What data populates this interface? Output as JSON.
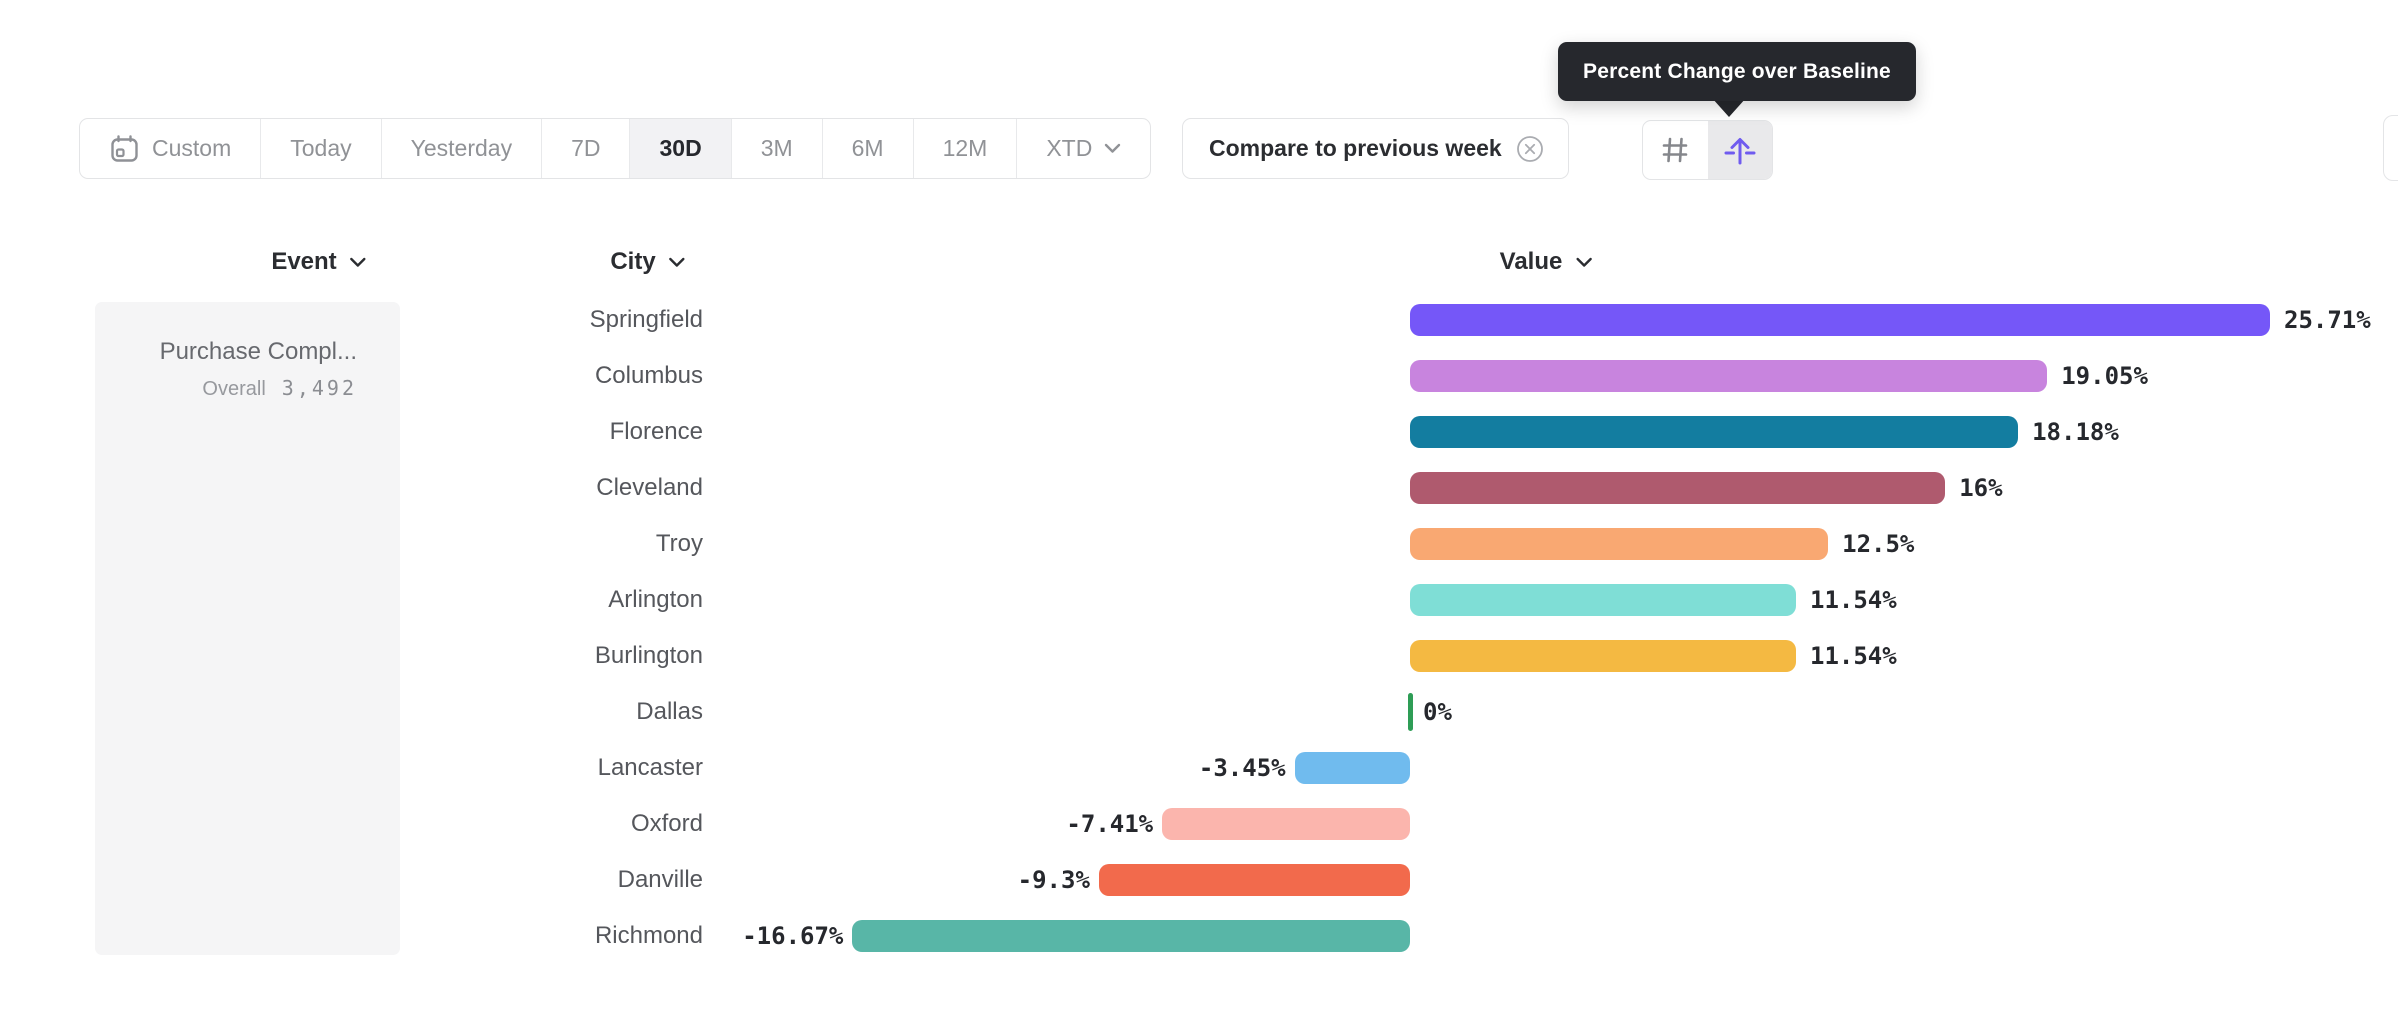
{
  "tooltip": {
    "text": "Percent Change over Baseline"
  },
  "toolbar": {
    "items": [
      {
        "label": "Custom",
        "icon": "calendar-icon",
        "selected": false
      },
      {
        "label": "Today",
        "selected": false
      },
      {
        "label": "Yesterday",
        "selected": false
      },
      {
        "label": "7D",
        "selected": false
      },
      {
        "label": "30D",
        "selected": true
      },
      {
        "label": "3M",
        "selected": false
      },
      {
        "label": "6M",
        "selected": false
      },
      {
        "label": "12M",
        "selected": false
      },
      {
        "label": "XTD",
        "chevron": true,
        "selected": false
      }
    ]
  },
  "compare": {
    "label": "Compare to previous week",
    "icon": "close-circle-icon"
  },
  "view_toggle": {
    "buttons": [
      {
        "name": "grid-view",
        "icon": "hash-grid-icon",
        "selected": false
      },
      {
        "name": "percent-change-view",
        "icon": "arrow-up-baseline-icon",
        "selected": true,
        "accent": "#6f5bef"
      }
    ]
  },
  "columns": {
    "event": "Event",
    "city": "City",
    "value": "Value"
  },
  "event_panel": {
    "title": "Purchase Compl...",
    "overall_label": "Overall",
    "overall_value": "3,492"
  },
  "chart_data": {
    "type": "bar",
    "orientation": "horizontal",
    "title": "Percent Change over Baseline",
    "xlabel": "Value",
    "unit": "percent",
    "baseline": 0,
    "xlim": [
      -16.67,
      25.71
    ],
    "categories": [
      "Springfield",
      "Columbus",
      "Florence",
      "Cleveland",
      "Troy",
      "Arlington",
      "Burlington",
      "Dallas",
      "Lancaster",
      "Oxford",
      "Danville",
      "Richmond"
    ],
    "values": [
      25.71,
      19.05,
      18.18,
      16,
      12.5,
      11.54,
      11.54,
      0,
      -3.45,
      -7.41,
      -9.3,
      -16.67
    ],
    "labels": [
      "25.71%",
      "19.05%",
      "18.18%",
      "16%",
      "12.5%",
      "11.54%",
      "11.54%",
      "0%",
      "-3.45%",
      "-7.41%",
      "-9.3%",
      "-16.67%"
    ],
    "colors": [
      "#7557f8",
      "#c884de",
      "#137da0",
      "#af5a6e",
      "#f9a872",
      "#7fded6",
      "#f4b942",
      "#2e9d56",
      "#70bbee",
      "#fbb5ad",
      "#f26a4c",
      "#58b6a7"
    ]
  }
}
